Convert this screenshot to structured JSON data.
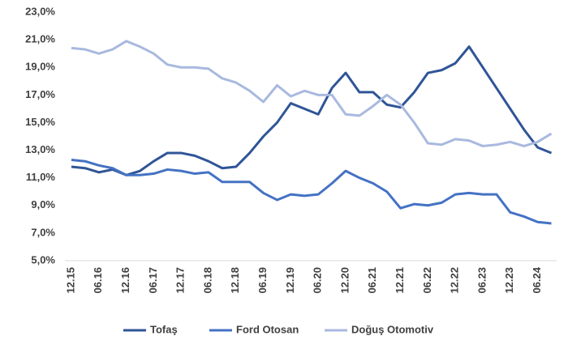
{
  "chart_data": {
    "type": "line",
    "categories": [
      "12.15",
      null,
      "06.16",
      null,
      "12.16",
      null,
      "06.17",
      null,
      "12.17",
      null,
      "06.18",
      null,
      "12.18",
      null,
      "06.19",
      null,
      "12.19",
      null,
      "06.20",
      null,
      "12.20",
      null,
      "06.21",
      null,
      "12.21",
      null,
      "06.22",
      null,
      "12.22",
      null,
      "06.23",
      null,
      "12.23",
      null,
      "06.24",
      null
    ],
    "series": [
      {
        "name": "Tofaş",
        "color": "#2f5597",
        "values": [
          11.8,
          11.7,
          11.4,
          11.6,
          11.2,
          11.5,
          12.2,
          12.8,
          12.8,
          12.6,
          12.2,
          11.7,
          11.8,
          12.8,
          14.0,
          15.0,
          16.4,
          16.0,
          15.6,
          17.5,
          18.6,
          17.2,
          17.2,
          16.3,
          16.1,
          17.2,
          18.6,
          18.8,
          19.3,
          20.5,
          19.0,
          17.5,
          16.0,
          14.5,
          13.2,
          12.8
        ]
      },
      {
        "name": "Ford Otosan",
        "color": "#4472c4",
        "values": [
          12.3,
          12.2,
          11.9,
          11.7,
          11.2,
          11.2,
          11.3,
          11.6,
          11.5,
          11.3,
          11.4,
          10.7,
          10.7,
          10.7,
          9.9,
          9.4,
          9.8,
          9.7,
          9.8,
          10.6,
          11.5,
          11.0,
          10.6,
          10.0,
          8.8,
          9.1,
          9.0,
          9.2,
          9.8,
          9.9,
          9.8,
          9.8,
          8.5,
          8.2,
          7.8,
          7.7
        ]
      },
      {
        "name": "Doğuş Otomotiv",
        "color": "#a9b9df",
        "values": [
          20.4,
          20.3,
          20.0,
          20.3,
          20.9,
          20.5,
          20.0,
          19.2,
          19.0,
          19.0,
          18.9,
          18.2,
          17.9,
          17.3,
          16.5,
          17.7,
          16.9,
          17.3,
          17.0,
          17.0,
          15.6,
          15.5,
          16.2,
          17.0,
          16.3,
          15.0,
          13.5,
          13.4,
          13.8,
          13.7,
          13.3,
          13.4,
          13.6,
          13.3,
          13.6,
          14.2
        ]
      }
    ],
    "ylim": [
      5,
      23
    ],
    "yticks": [
      {
        "value": 5,
        "label": "5,0%"
      },
      {
        "value": 7,
        "label": "7,0%"
      },
      {
        "value": 9,
        "label": "9,0%"
      },
      {
        "value": 11,
        "label": "11,0%"
      },
      {
        "value": 13,
        "label": "13,0%"
      },
      {
        "value": 15,
        "label": "15,0%"
      },
      {
        "value": 17,
        "label": "17,0%"
      },
      {
        "value": 19,
        "label": "19,0%"
      },
      {
        "value": 21,
        "label": "21,0%"
      },
      {
        "value": 23,
        "label": "23,0%"
      }
    ],
    "legend": "bottom"
  }
}
